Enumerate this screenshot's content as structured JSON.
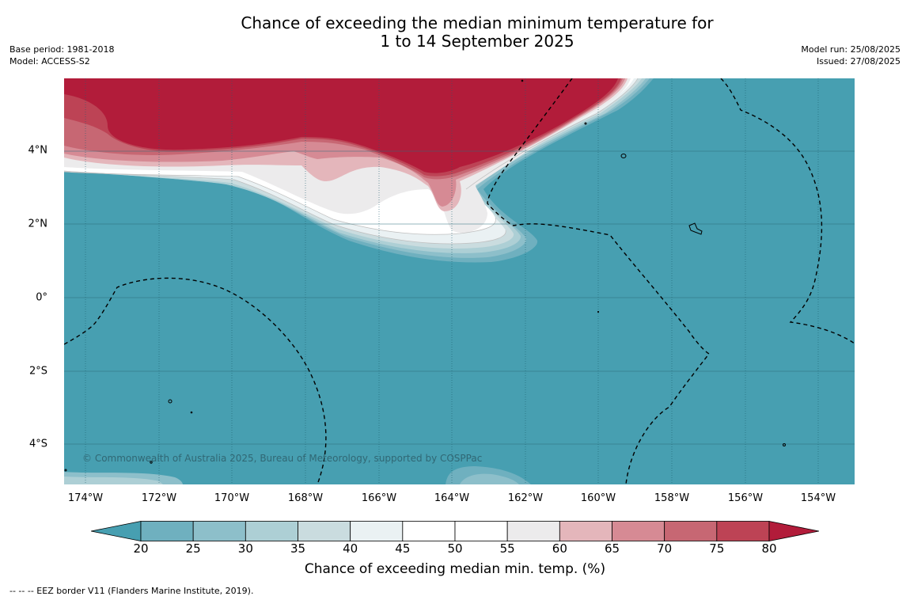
{
  "header": {
    "title_line1": "Chance of exceeding the median minimum temperature for",
    "title_line2": "1 to 14 September 2025",
    "base_period": "Base period: 1981-2018",
    "model": "Model: ACCESS-S2",
    "model_run": "Model run: 25/08/2025",
    "issued": "Issued: 27/08/2025"
  },
  "map": {
    "lat_labels": [
      "4°N",
      "2°N",
      "0°",
      "2°S",
      "4°S"
    ],
    "lon_labels": [
      "174°W",
      "172°W",
      "170°W",
      "168°W",
      "166°W",
      "164°W",
      "162°W",
      "160°W",
      "158°W",
      "156°W",
      "154°W"
    ],
    "copyright": "© Commonwealth of Australia 2025, Bureau of Meteorology, supported by COSPPac"
  },
  "colorbar": {
    "ticks": [
      "20",
      "25",
      "30",
      "35",
      "40",
      "45",
      "50",
      "55",
      "60",
      "65",
      "70",
      "75",
      "80"
    ],
    "colors": [
      "#479fb1",
      "#6fb0bf",
      "#8dbfca",
      "#adcfd5",
      "#cadcdf",
      "#eaf1f3",
      "#ffffff",
      "#ffffff",
      "#ecebec",
      "#e4b6bb",
      "#d68a94",
      "#c76773",
      "#bd4355",
      "#b21c3a"
    ],
    "title": "Chance of exceeding median min. temp. (%)"
  },
  "footnote": "--  --  -- EEZ border V11 (Flanders Marine Institute, 2019)."
}
